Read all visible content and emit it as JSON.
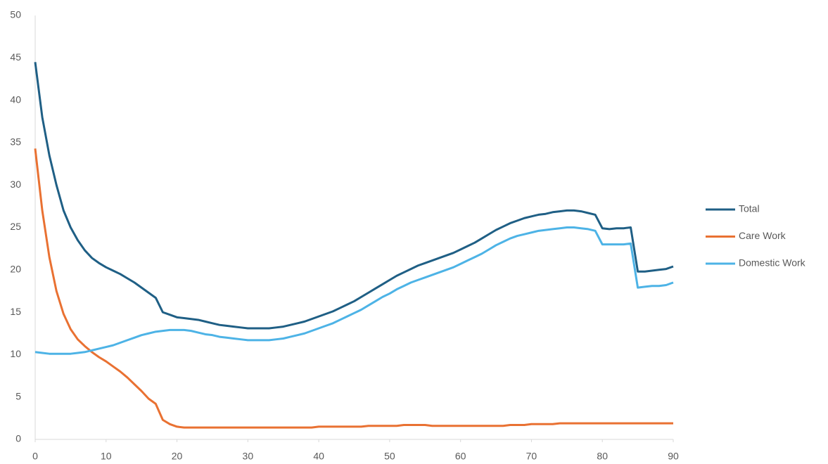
{
  "chart_data": {
    "type": "line",
    "x": [
      0,
      1,
      2,
      3,
      4,
      5,
      6,
      7,
      8,
      9,
      10,
      11,
      12,
      13,
      14,
      15,
      16,
      17,
      18,
      19,
      20,
      21,
      22,
      23,
      24,
      25,
      26,
      27,
      28,
      29,
      30,
      31,
      32,
      33,
      34,
      35,
      36,
      37,
      38,
      39,
      40,
      41,
      42,
      43,
      44,
      45,
      46,
      47,
      48,
      49,
      50,
      51,
      52,
      53,
      54,
      55,
      56,
      57,
      58,
      59,
      60,
      61,
      62,
      63,
      64,
      65,
      66,
      67,
      68,
      69,
      70,
      71,
      72,
      73,
      74,
      75,
      76,
      77,
      78,
      79,
      80,
      81,
      82,
      83,
      84,
      85,
      86,
      87,
      88,
      89,
      90
    ],
    "series": [
      {
        "name": "Total",
        "color": "#1f5f85",
        "values": [
          44.5,
          38,
          33.5,
          30,
          27,
          25,
          23.5,
          22.3,
          21.4,
          20.8,
          20.3,
          19.9,
          19.5,
          19,
          18.5,
          17.9,
          17.3,
          16.7,
          15,
          14.7,
          14.4,
          14.3,
          14.2,
          14.1,
          13.9,
          13.7,
          13.5,
          13.4,
          13.3,
          13.2,
          13.1,
          13.1,
          13.1,
          13.1,
          13.2,
          13.3,
          13.5,
          13.7,
          13.9,
          14.2,
          14.5,
          14.8,
          15.1,
          15.5,
          15.9,
          16.3,
          16.8,
          17.3,
          17.8,
          18.3,
          18.8,
          19.3,
          19.7,
          20.1,
          20.5,
          20.8,
          21.1,
          21.4,
          21.7,
          22,
          22.4,
          22.8,
          23.2,
          23.7,
          24.2,
          24.7,
          25.1,
          25.5,
          25.8,
          26.1,
          26.3,
          26.5,
          26.6,
          26.8,
          26.9,
          27,
          27,
          26.9,
          26.7,
          26.5,
          24.9,
          24.8,
          24.9,
          24.9,
          25,
          19.8,
          19.8,
          19.9,
          20,
          20.1,
          20.4
        ]
      },
      {
        "name": "Care Work",
        "color": "#e97132",
        "values": [
          34.3,
          27,
          21.5,
          17.5,
          14.8,
          13,
          11.8,
          11,
          10.3,
          9.7,
          9.2,
          8.6,
          8,
          7.3,
          6.5,
          5.7,
          4.8,
          4.2,
          2.3,
          1.8,
          1.5,
          1.4,
          1.4,
          1.4,
          1.4,
          1.4,
          1.4,
          1.4,
          1.4,
          1.4,
          1.4,
          1.4,
          1.4,
          1.4,
          1.4,
          1.4,
          1.4,
          1.4,
          1.4,
          1.4,
          1.5,
          1.5,
          1.5,
          1.5,
          1.5,
          1.5,
          1.5,
          1.6,
          1.6,
          1.6,
          1.6,
          1.6,
          1.7,
          1.7,
          1.7,
          1.7,
          1.6,
          1.6,
          1.6,
          1.6,
          1.6,
          1.6,
          1.6,
          1.6,
          1.6,
          1.6,
          1.6,
          1.7,
          1.7,
          1.7,
          1.8,
          1.8,
          1.8,
          1.8,
          1.9,
          1.9,
          1.9,
          1.9,
          1.9,
          1.9,
          1.9,
          1.9,
          1.9,
          1.9,
          1.9,
          1.9,
          1.9,
          1.9,
          1.9,
          1.9,
          1.9
        ]
      },
      {
        "name": "Domestic Work",
        "color": "#4db3e6",
        "values": [
          10.3,
          10.2,
          10.1,
          10.1,
          10.1,
          10.1,
          10.2,
          10.3,
          10.5,
          10.7,
          10.9,
          11.1,
          11.4,
          11.7,
          12,
          12.3,
          12.5,
          12.7,
          12.8,
          12.9,
          12.9,
          12.9,
          12.8,
          12.6,
          12.4,
          12.3,
          12.1,
          12,
          11.9,
          11.8,
          11.7,
          11.7,
          11.7,
          11.7,
          11.8,
          11.9,
          12.1,
          12.3,
          12.5,
          12.8,
          13.1,
          13.4,
          13.7,
          14.1,
          14.5,
          14.9,
          15.3,
          15.8,
          16.3,
          16.8,
          17.2,
          17.7,
          18.1,
          18.5,
          18.8,
          19.1,
          19.4,
          19.7,
          20,
          20.3,
          20.7,
          21.1,
          21.5,
          21.9,
          22.4,
          22.9,
          23.3,
          23.7,
          24,
          24.2,
          24.4,
          24.6,
          24.7,
          24.8,
          24.9,
          25,
          25,
          24.9,
          24.8,
          24.6,
          23,
          23,
          23,
          23,
          23.1,
          17.9,
          18,
          18.1,
          18.1,
          18.2,
          18.5
        ]
      }
    ],
    "xlim": [
      0,
      90
    ],
    "xticks": [
      0,
      10,
      20,
      30,
      40,
      50,
      60,
      70,
      80,
      90
    ],
    "ylim": [
      0,
      50
    ],
    "yticks": [
      0,
      5,
      10,
      15,
      20,
      25,
      30,
      35,
      40,
      45,
      50
    ],
    "grid": false,
    "legend": "right"
  }
}
